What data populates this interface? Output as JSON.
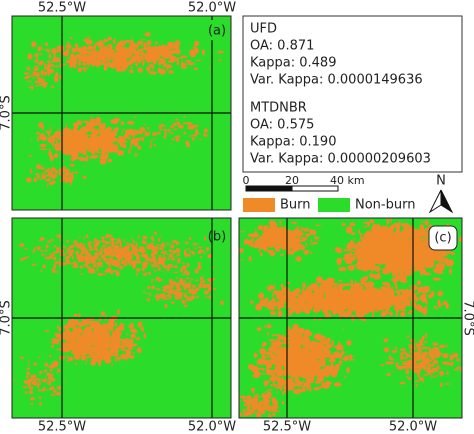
{
  "coordinates": {
    "lon_west": "52.5°W",
    "lon_east": "52.0°W",
    "lat": "7.0°S"
  },
  "panels": [
    {
      "label": "(a)"
    },
    {
      "label": "(b)"
    },
    {
      "label": "(c)"
    }
  ],
  "stats": [
    {
      "method": "UFD",
      "lines": [
        "OA: 0.871",
        "Kappa: 0.489",
        "Var. Kappa: 0.0000149636"
      ]
    },
    {
      "method": "MTDNBR",
      "lines": [
        "OA: 0.575",
        "Kappa: 0.190",
        "Var. Kappa: 0.00000209603"
      ]
    }
  ],
  "scale_bar": {
    "ticks": [
      "0",
      "20",
      "40 km"
    ]
  },
  "legend": [
    {
      "label": "Burn",
      "color": "#f08a28"
    },
    {
      "label": "Non-burn",
      "color": "#2bdc2b"
    }
  ],
  "north": "N"
}
